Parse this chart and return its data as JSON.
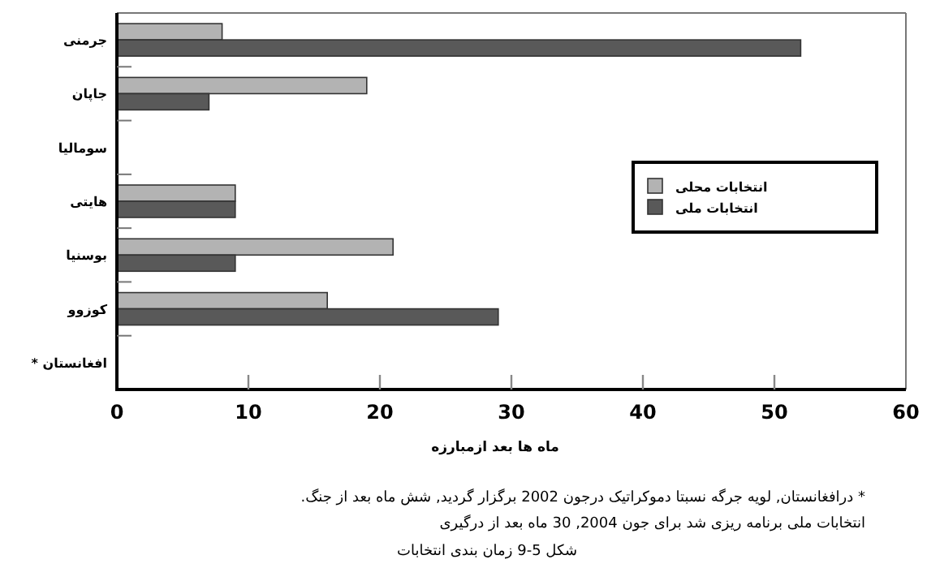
{
  "chart_data": {
    "type": "bar",
    "orientation": "horizontal",
    "categories": [
      "جرمنی",
      "جاپان",
      "سومالیا",
      "هایتی",
      "بوسنیا",
      "کوزوو",
      "افغانستان *"
    ],
    "series": [
      {
        "name": "انتخابات محلی",
        "color": "#b3b3b3",
        "values": [
          8,
          19,
          null,
          9,
          21,
          16,
          null
        ]
      },
      {
        "name": "انتخابات ملی",
        "color": "#595959",
        "values": [
          52,
          7,
          null,
          9,
          9,
          29,
          null
        ]
      }
    ],
    "xlim": [
      0,
      60
    ],
    "xticks": [
      0,
      10,
      20,
      30,
      40,
      50,
      60
    ],
    "xlabel": "ماه ها بعد ازمبارزه",
    "legend": "right",
    "grid": false,
    "annotations": [
      "* درافغانستان, لویه جرگه نسبتا دموکراتیک درجون 2002 برگزار گردید, شش ماه بعد از جنگ.",
      "انتخابات ملی برنامه ریزی شد برای جون 2004, 30 ماه بعد از درگیری",
      "شکل 5-9 زمان بندی انتخابات"
    ]
  }
}
